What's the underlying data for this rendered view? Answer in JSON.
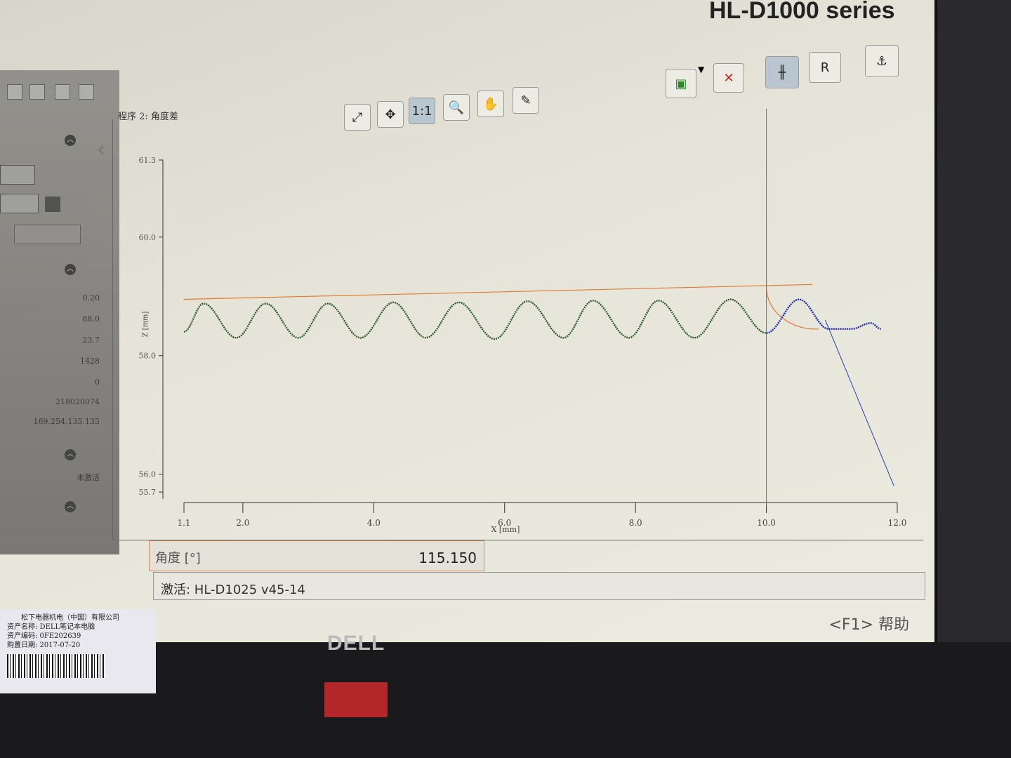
{
  "window": {
    "title": "HL-D1000 series"
  },
  "left_panel": {
    "values": [
      "0.20",
      "88.0",
      "23.7",
      "1428",
      "0",
      "218020074",
      "169.254.135.135"
    ],
    "inactive_label": "未激活"
  },
  "program": {
    "title": "程序 2: 角度差"
  },
  "toolbar": {
    "buttons": [
      {
        "name": "fit-view",
        "icon": "expand-icon",
        "label": ""
      },
      {
        "name": "auto-scale",
        "icon": "auto-scale-icon",
        "label": ""
      },
      {
        "name": "one-to-one",
        "icon": "",
        "label": "1:1",
        "active": true
      },
      {
        "name": "zoom",
        "icon": "magnifier-icon",
        "label": ""
      },
      {
        "name": "pan",
        "icon": "hand-icon",
        "label": ""
      },
      {
        "name": "eyedropper",
        "icon": "eyedropper-icon",
        "label": ""
      }
    ],
    "right_buttons": [
      {
        "name": "select-region",
        "icon": "select-region-icon"
      },
      {
        "name": "delete",
        "icon": "delete-icon"
      },
      {
        "name": "cursor-mode",
        "icon": "cursor-line-icon",
        "active": true
      },
      {
        "name": "reference-mode",
        "icon": "reference-icon",
        "label": "R"
      },
      {
        "name": "anchor",
        "icon": "anchor-icon"
      }
    ]
  },
  "chart_data": {
    "type": "line",
    "xlabel": "X [mm]",
    "ylabel": "Z [mm]",
    "xlim": [
      1.1,
      12.0
    ],
    "ylim": [
      55.7,
      61.3
    ],
    "x_ticks": [
      "1.1",
      "2.0",
      "4.0",
      "6.0",
      "8.0",
      "10.0",
      "12.0"
    ],
    "y_ticks": [
      "61.3",
      "60.0",
      "58.0",
      "56.0",
      "55.7"
    ],
    "grid": false,
    "series": [
      {
        "color": "#2f5e2f",
        "points": [
          [
            1.1,
            58.4
          ],
          [
            1.4,
            58.88
          ],
          [
            1.9,
            58.3
          ],
          [
            2.35,
            58.88
          ],
          [
            2.85,
            58.3
          ],
          [
            3.3,
            58.88
          ],
          [
            3.8,
            58.3
          ],
          [
            4.3,
            58.9
          ],
          [
            4.8,
            58.3
          ],
          [
            5.3,
            58.9
          ],
          [
            5.85,
            58.28
          ],
          [
            6.35,
            58.92
          ],
          [
            6.9,
            58.3
          ],
          [
            7.35,
            58.93
          ],
          [
            7.9,
            58.3
          ],
          [
            8.35,
            58.93
          ],
          [
            8.9,
            58.3
          ],
          [
            9.45,
            58.95
          ],
          [
            10.0,
            58.38
          ]
        ]
      },
      {
        "color": "#1f2fb0",
        "points": [
          [
            10.0,
            58.38
          ],
          [
            10.5,
            58.95
          ],
          [
            10.95,
            58.45
          ],
          [
            11.3,
            58.45
          ],
          [
            11.6,
            58.55
          ],
          [
            11.75,
            58.45
          ]
        ]
      }
    ],
    "reference_line": {
      "color": "#e07a30",
      "points": [
        [
          1.1,
          58.95
        ],
        [
          10.7,
          59.2
        ]
      ]
    },
    "fit_line": {
      "color": "#2a3fb5",
      "points": [
        [
          10.9,
          58.6
        ],
        [
          11.95,
          55.8
        ]
      ]
    },
    "cursor_x": 10.0
  },
  "measurement": {
    "label": "角度 [°]",
    "value": "115.150"
  },
  "status": {
    "text": "激活: HL-D1025 v45-14"
  },
  "help": {
    "text": "<F1> 帮助"
  },
  "hardware": {
    "brand": "DELL",
    "asset_label": [
      "松下电器机电（中国）有限公司",
      "资产名称: DELL笔记本电脑",
      "资产编码: 0FE202639",
      "购置日期: 2017-07-20"
    ]
  }
}
